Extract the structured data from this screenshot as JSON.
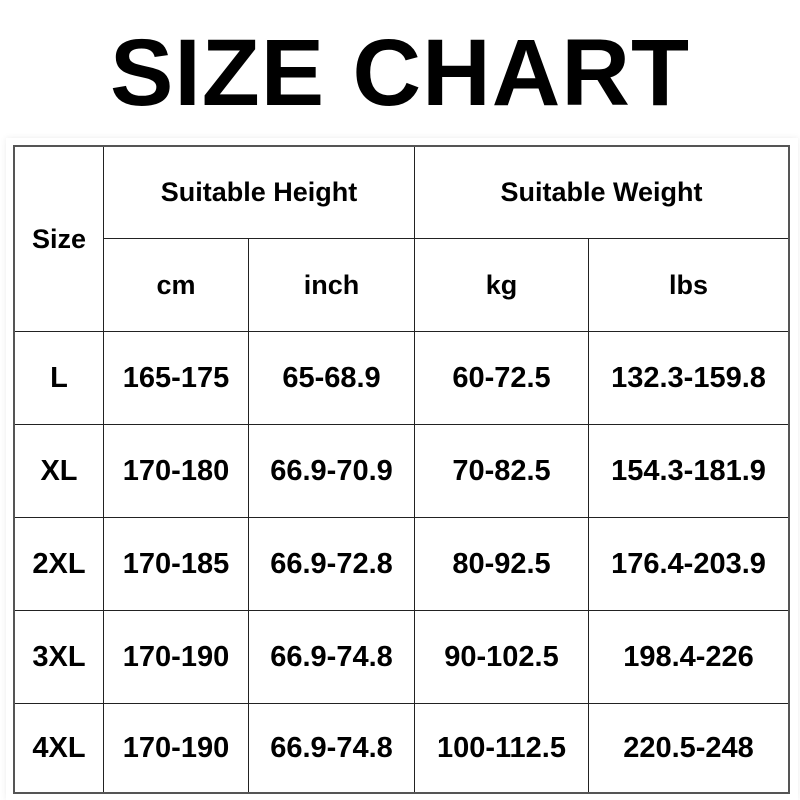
{
  "title": "SIZE CHART",
  "table": {
    "size_header": "Size",
    "height_header": "Suitable Height",
    "weight_header": "Suitable Weight",
    "units": [
      "cm",
      "inch",
      "kg",
      "lbs"
    ],
    "rows": [
      [
        "L",
        "165-175",
        "65-68.9",
        "60-72.5",
        "132.3-159.8"
      ],
      [
        "XL",
        "170-180",
        "66.9-70.9",
        "70-82.5",
        "154.3-181.9"
      ],
      [
        "2XL",
        "170-185",
        "66.9-72.8",
        "80-92.5",
        "176.4-203.9"
      ],
      [
        "3XL",
        "170-190",
        "66.9-74.8",
        "90-102.5",
        "198.4-226"
      ],
      [
        "4XL",
        "170-190",
        "66.9-74.8",
        "100-112.5",
        "220.5-248"
      ]
    ]
  }
}
